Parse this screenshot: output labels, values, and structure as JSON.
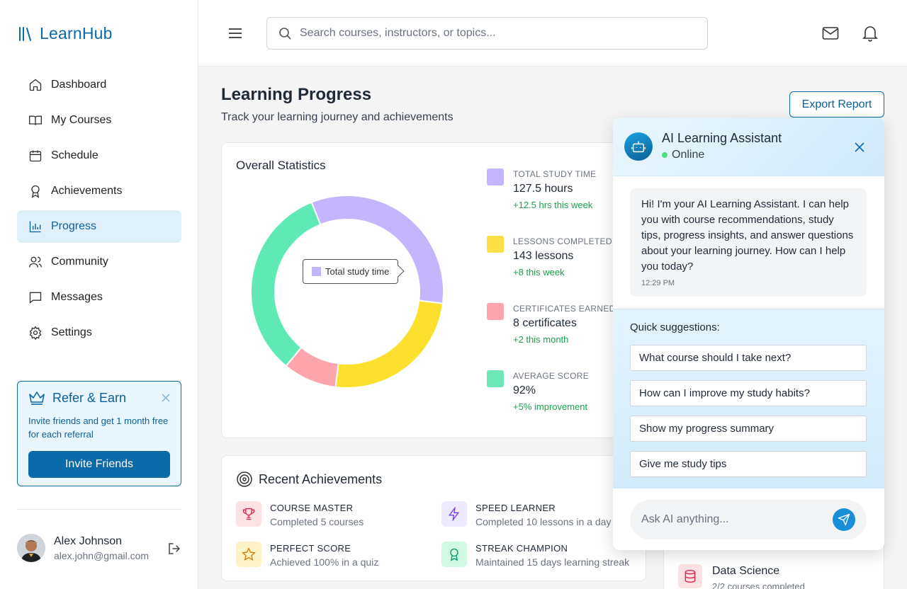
{
  "app": {
    "name": "LearnHub"
  },
  "sidebar": {
    "items": [
      {
        "label": "Dashboard",
        "icon": "home-icon"
      },
      {
        "label": "My Courses",
        "icon": "book-icon"
      },
      {
        "label": "Schedule",
        "icon": "calendar-icon"
      },
      {
        "label": "Achievements",
        "icon": "award-icon"
      },
      {
        "label": "Progress",
        "icon": "bar-chart-icon",
        "active": true
      },
      {
        "label": "Community",
        "icon": "users-icon"
      },
      {
        "label": "Messages",
        "icon": "message-icon"
      },
      {
        "label": "Settings",
        "icon": "gear-icon"
      }
    ],
    "refer": {
      "title": "Refer & Earn",
      "text": "Invite friends and get 1 month free for each referral",
      "button": "Invite Friends"
    },
    "user": {
      "name": "Alex Johnson",
      "email": "alex.john@gmail.com"
    }
  },
  "topbar": {
    "search_placeholder": "Search courses, instructors, or topics..."
  },
  "page": {
    "title": "Learning Progress",
    "subtitle": "Track your learning journey and achievements",
    "export_label": "Export Report"
  },
  "stats": {
    "title": "Overall Statistics",
    "tooltip": "Total study time",
    "items": [
      {
        "label": "TOTAL STUDY TIME",
        "value": "127.5 hours",
        "change": "+12.5 hrs this week",
        "color": "#c4b5fd"
      },
      {
        "label": "LESSONS COMPLETED",
        "value": "143 lessons",
        "change": "+8 this week",
        "color": "#fde047"
      },
      {
        "label": "CERTIFICATES EARNED",
        "value": "8 certificates",
        "change": "+2 this month",
        "color": "#fda4af"
      },
      {
        "label": "AVERAGE SCORE",
        "value": "92%",
        "change": "+5% improvement",
        "color": "#6ee7b7"
      }
    ]
  },
  "chart_data": {
    "type": "pie",
    "categories": [
      "Total study time",
      "Lessons completed",
      "Certificates earned",
      "Average score"
    ],
    "values": [
      33,
      25,
      9,
      33
    ],
    "colors": [
      "#c4b5fd",
      "#fde02d",
      "#fca5ac",
      "#5ee9b5"
    ]
  },
  "achievements": {
    "title": "Recent Achievements",
    "items": [
      {
        "title": "COURSE MASTER",
        "desc": "Completed 5 courses",
        "icon": "trophy-icon",
        "bg": "#fde2e4",
        "color": "#e11d48"
      },
      {
        "title": "SPEED LEARNER",
        "desc": "Completed 10 lessons in a day",
        "icon": "lightning-icon",
        "bg": "#ede9fe",
        "color": "#7c3aed"
      },
      {
        "title": "PERFECT SCORE",
        "desc": "Achieved 100% in a quiz",
        "icon": "star-icon",
        "bg": "#fef3c7",
        "color": "#d97706"
      },
      {
        "title": "STREAK CHAMPION",
        "desc": "Maintained 15 days learning streak",
        "icon": "award-icon",
        "bg": "#d1fae5",
        "color": "#059669"
      }
    ]
  },
  "course_card": {
    "name": "Data Science",
    "sub": "2/2 courses completed"
  },
  "chat": {
    "title": "AI Learning Assistant",
    "status": "Online",
    "message": "Hi! I'm your AI Learning Assistant. I can help you with course recommendations, study tips, progress insights, and answer questions about your learning journey. How can I help you today?",
    "time": "12:29 PM",
    "suggestions_title": "Quick suggestions:",
    "suggestions": [
      "What course should I take next?",
      "How can I improve my study habits?",
      "Show my progress summary",
      "Give me study tips"
    ],
    "input_placeholder": "Ask AI anything..."
  }
}
